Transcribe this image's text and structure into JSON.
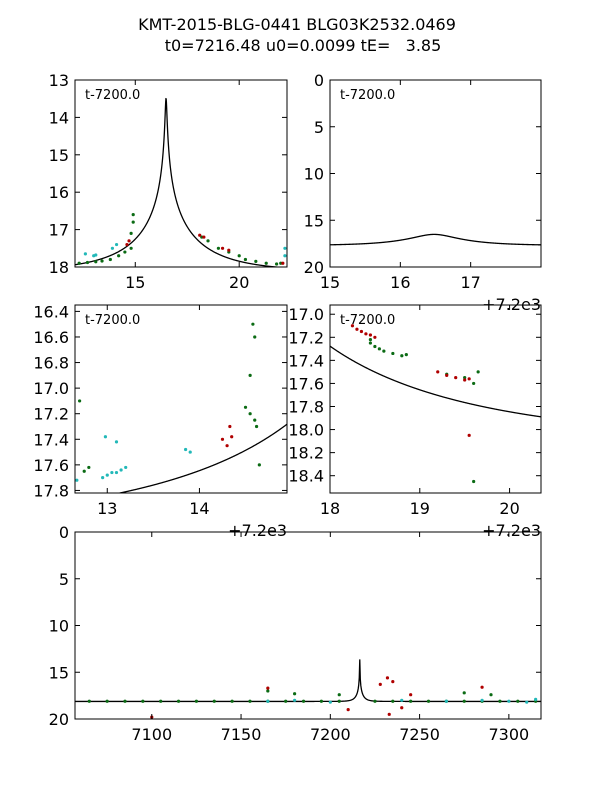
{
  "figure": {
    "title_line1": "KMT-2015-BLG-0441 BLG03K2532.0469",
    "title_line2": "t0=7216.48 u0=0.0099 tE=   3.85"
  },
  "colors": {
    "green": "#0b6b14",
    "red": "#b00000",
    "cyan": "#22b8b8",
    "model": "#000000"
  },
  "chart_data": [
    {
      "id": "top-left",
      "type": "scatter",
      "inset_label": "t-7200.0",
      "offset_label": "",
      "xlim": [
        12.1,
        22.3
      ],
      "ylim": [
        18.0,
        13.0
      ],
      "xticks": [
        15,
        20
      ],
      "xtick_labels": [
        "15",
        "20"
      ],
      "yticks": [
        13,
        14,
        15,
        16,
        17,
        18
      ],
      "ytick_labels": [
        "13",
        "14",
        "15",
        "16",
        "17",
        "18"
      ],
      "model": {
        "t0": 16.48,
        "u0": 0.0099,
        "tE": 3.85,
        "baseline": 18.12,
        "fs": 0.7
      },
      "series": [
        {
          "name": "green",
          "color": "#0b6b14",
          "points": [
            [
              12.3,
              17.9
            ],
            [
              12.7,
              17.88
            ],
            [
              13.1,
              17.86
            ],
            [
              13.4,
              17.84
            ],
            [
              13.8,
              17.8
            ],
            [
              14.2,
              17.7
            ],
            [
              14.5,
              17.6
            ],
            [
              14.8,
              17.5
            ],
            [
              14.9,
              16.6
            ],
            [
              14.9,
              16.8
            ],
            [
              14.8,
              17.1
            ],
            [
              18.2,
              17.2
            ],
            [
              18.5,
              17.3
            ],
            [
              19.0,
              17.5
            ],
            [
              19.5,
              17.6
            ],
            [
              20.0,
              17.7
            ],
            [
              20.3,
              17.8
            ],
            [
              20.8,
              17.85
            ],
            [
              21.3,
              17.9
            ],
            [
              21.8,
              17.92
            ],
            [
              22.0,
              17.9
            ]
          ]
        },
        {
          "name": "red",
          "color": "#b00000",
          "points": [
            [
              14.6,
              17.4
            ],
            [
              14.7,
              17.3
            ],
            [
              18.1,
              17.15
            ],
            [
              18.3,
              17.2
            ],
            [
              19.2,
              17.5
            ],
            [
              19.5,
              17.55
            ],
            [
              22.1,
              17.9
            ]
          ]
        },
        {
          "name": "cyan",
          "color": "#22b8b8",
          "points": [
            [
              12.6,
              17.65
            ],
            [
              13.0,
              17.7
            ],
            [
              13.1,
              17.68
            ],
            [
              13.9,
              17.5
            ],
            [
              14.1,
              17.4
            ],
            [
              22.2,
              17.5
            ],
            [
              22.2,
              17.7
            ]
          ]
        }
      ]
    },
    {
      "id": "top-right",
      "type": "line",
      "inset_label": "t-7200.0",
      "offset_label": "+7.2e3",
      "xlim": [
        15.0,
        18.0
      ],
      "ylim": [
        20.0,
        0.0
      ],
      "xticks": [
        15,
        16,
        17
      ],
      "xtick_labels": [
        "15",
        "16",
        "17"
      ],
      "yticks": [
        0,
        5,
        10,
        15,
        20
      ],
      "ytick_labels": [
        "0",
        "5",
        "10",
        "15",
        "20"
      ],
      "model": {
        "t0": 16.48,
        "u0": 0.35,
        "tE": 0.8,
        "baseline": 17.7,
        "fs": 1.0
      },
      "series": []
    },
    {
      "id": "middle-left",
      "type": "scatter",
      "inset_label": "t-7200.0",
      "offset_label": "+7.2e3",
      "xlim": [
        12.65,
        14.95
      ],
      "ylim": [
        17.82,
        16.35
      ],
      "xticks": [
        13,
        14
      ],
      "xtick_labels": [
        "13",
        "14"
      ],
      "yticks": [
        16.4,
        16.6,
        16.8,
        17.0,
        17.2,
        17.4,
        17.6,
        17.8
      ],
      "ytick_labels": [
        "16.4",
        "16.6",
        "16.8",
        "17.0",
        "17.2",
        "17.4",
        "17.6",
        "17.8"
      ],
      "model": {
        "t0": 16.48,
        "u0": 0.0099,
        "tE": 3.85,
        "baseline": 18.12,
        "fs": 0.7
      },
      "series": [
        {
          "name": "green",
          "color": "#0b6b14",
          "points": [
            [
              12.7,
              17.1
            ],
            [
              12.75,
              17.65
            ],
            [
              12.8,
              17.62
            ],
            [
              14.55,
              16.9
            ],
            [
              14.58,
              16.5
            ],
            [
              14.6,
              16.6
            ],
            [
              14.62,
              17.3
            ],
            [
              14.55,
              17.2
            ],
            [
              14.6,
              17.25
            ],
            [
              14.65,
              17.6
            ],
            [
              14.5,
              17.15
            ]
          ]
        },
        {
          "name": "red",
          "color": "#b00000",
          "points": [
            [
              14.25,
              17.4
            ],
            [
              14.3,
              17.45
            ],
            [
              14.35,
              17.38
            ],
            [
              14.33,
              17.3
            ]
          ]
        },
        {
          "name": "cyan",
          "color": "#22b8b8",
          "points": [
            [
              12.95,
              17.7
            ],
            [
              13.0,
              17.68
            ],
            [
              13.05,
              17.66
            ],
            [
              13.1,
              17.66
            ],
            [
              13.15,
              17.64
            ],
            [
              13.2,
              17.62
            ],
            [
              12.98,
              17.38
            ],
            [
              13.1,
              17.42
            ],
            [
              13.85,
              17.48
            ],
            [
              13.9,
              17.5
            ],
            [
              12.67,
              17.72
            ]
          ]
        }
      ]
    },
    {
      "id": "middle-right",
      "type": "scatter",
      "inset_label": "t-7200.0",
      "offset_label": "+7.2e3",
      "xlim": [
        18.0,
        20.35
      ],
      "ylim": [
        18.55,
        16.92
      ],
      "xticks": [
        18,
        19,
        20
      ],
      "xtick_labels": [
        "18",
        "19",
        "20"
      ],
      "yticks": [
        17.0,
        17.2,
        17.4,
        17.6,
        17.8,
        18.0,
        18.2,
        18.4
      ],
      "ytick_labels": [
        "17.0",
        "17.2",
        "17.4",
        "17.6",
        "17.8",
        "18.0",
        "18.2",
        "18.4"
      ],
      "model": {
        "t0": 16.48,
        "u0": 0.0099,
        "tE": 3.85,
        "baseline": 18.12,
        "fs": 0.7
      },
      "series": [
        {
          "name": "green",
          "color": "#0b6b14",
          "points": [
            [
              18.45,
              17.25
            ],
            [
              18.5,
              17.28
            ],
            [
              18.55,
              17.3
            ],
            [
              18.6,
              17.32
            ],
            [
              18.7,
              17.34
            ],
            [
              18.8,
              17.36
            ],
            [
              18.85,
              17.35
            ],
            [
              19.3,
              17.52
            ],
            [
              19.5,
              17.55
            ],
            [
              19.6,
              17.6
            ],
            [
              19.65,
              17.5
            ],
            [
              19.6,
              18.45
            ],
            [
              18.45,
              17.22
            ]
          ]
        },
        {
          "name": "red",
          "color": "#b00000",
          "points": [
            [
              18.25,
              17.1
            ],
            [
              18.3,
              17.13
            ],
            [
              18.35,
              17.15
            ],
            [
              18.4,
              17.17
            ],
            [
              18.45,
              17.18
            ],
            [
              18.5,
              17.2
            ],
            [
              19.2,
              17.5
            ],
            [
              19.3,
              17.53
            ],
            [
              19.4,
              17.55
            ],
            [
              19.5,
              17.57
            ],
            [
              19.55,
              17.56
            ],
            [
              19.55,
              18.05
            ]
          ]
        }
      ]
    },
    {
      "id": "bottom",
      "type": "scatter",
      "inset_label": "",
      "offset_label": "",
      "xlim": [
        7057,
        7318
      ],
      "ylim": [
        20.0,
        0.0
      ],
      "xticks": [
        7100,
        7150,
        7200,
        7250,
        7300
      ],
      "xtick_labels": [
        "7100",
        "7150",
        "7200",
        "7250",
        "7300"
      ],
      "yticks": [
        0,
        5,
        10,
        15,
        20
      ],
      "ytick_labels": [
        "0",
        "5",
        "10",
        "15",
        "20"
      ],
      "model": {
        "t0": 7216.48,
        "u0": 0.0099,
        "tE": 3.85,
        "baseline": 18.12,
        "fs": 0.7
      },
      "series": [
        {
          "name": "green",
          "color": "#0b6b14",
          "points": [
            [
              7065,
              18.1
            ],
            [
              7075,
              18.1
            ],
            [
              7085,
              18.1
            ],
            [
              7095,
              18.1
            ],
            [
              7105,
              18.1
            ],
            [
              7115,
              18.1
            ],
            [
              7125,
              18.1
            ],
            [
              7135,
              18.1
            ],
            [
              7145,
              18.1
            ],
            [
              7155,
              18.1
            ],
            [
              7165,
              18.1
            ],
            [
              7175,
              18.1
            ],
            [
              7185,
              18.1
            ],
            [
              7195,
              18.1
            ],
            [
              7205,
              18.1
            ],
            [
              7225,
              18.1
            ],
            [
              7235,
              18.1
            ],
            [
              7245,
              18.1
            ],
            [
              7255,
              18.1
            ],
            [
              7265,
              18.1
            ],
            [
              7275,
              18.1
            ],
            [
              7285,
              18.1
            ],
            [
              7295,
              18.1
            ],
            [
              7305,
              18.1
            ],
            [
              7315,
              18.1
            ],
            [
              7165,
              17.0
            ],
            [
              7180,
              17.3
            ],
            [
              7205,
              17.4
            ],
            [
              7275,
              17.2
            ],
            [
              7290,
              17.4
            ]
          ]
        },
        {
          "name": "red",
          "color": "#b00000",
          "points": [
            [
              7165,
              16.7
            ],
            [
              7228,
              16.3
            ],
            [
              7232,
              15.6
            ],
            [
              7235,
              16.0
            ],
            [
              7210,
              19.0
            ],
            [
              7233,
              19.5
            ],
            [
              7240,
              18.8
            ],
            [
              7245,
              17.4
            ],
            [
              7100,
              19.8
            ],
            [
              7285,
              16.6
            ]
          ]
        },
        {
          "name": "cyan",
          "color": "#22b8b8",
          "points": [
            [
              7165,
              18.1
            ],
            [
              7180,
              18.0
            ],
            [
              7200,
              18.2
            ],
            [
              7240,
              18.0
            ],
            [
              7265,
              18.1
            ],
            [
              7285,
              18.0
            ],
            [
              7300,
              18.1
            ],
            [
              7310,
              18.2
            ],
            [
              7315,
              17.9
            ]
          ]
        }
      ]
    }
  ]
}
